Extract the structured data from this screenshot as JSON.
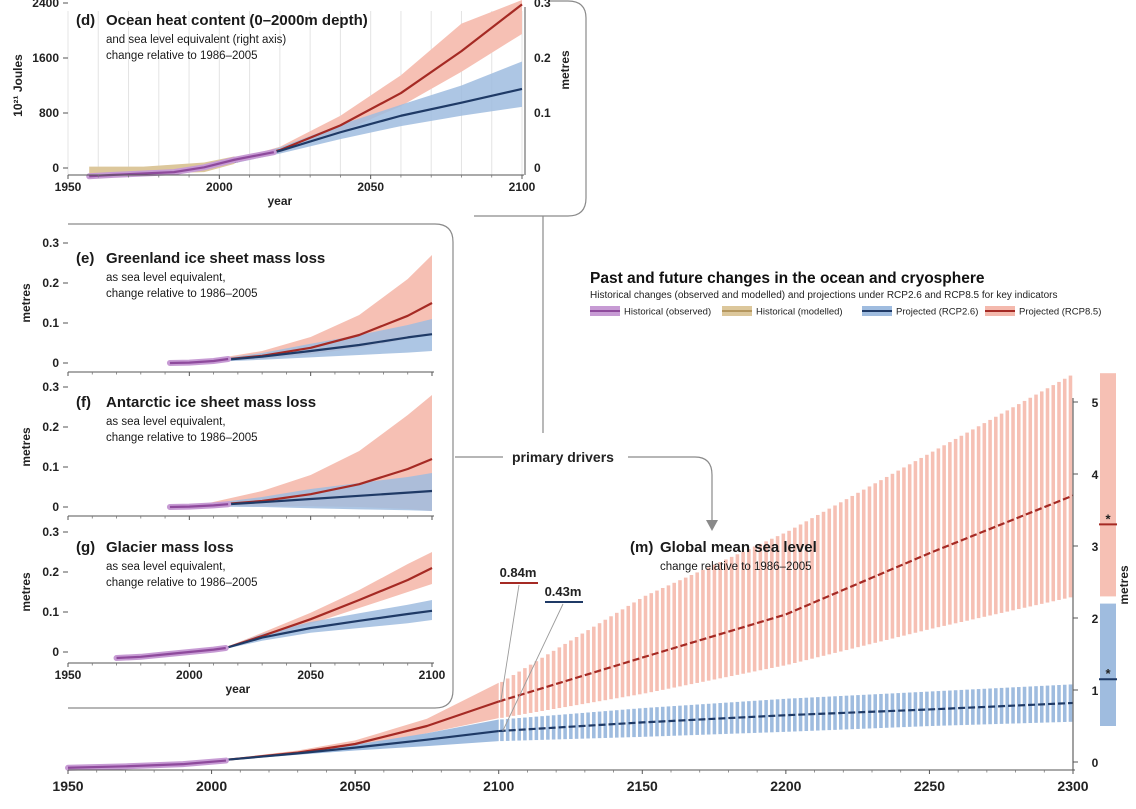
{
  "header": {
    "title": "Past and future changes in the ocean and cryosphere",
    "subtitle": "Historical changes (observed and modelled) and projections under RCP2.6 and RCP8.5 for key indicators"
  },
  "legend": [
    {
      "label": "Historical (observed)",
      "color": "#8e4a9c",
      "band": "#c79bd4"
    },
    {
      "label": "Historical (modelled)",
      "color": "#b5975e",
      "band": "#dcc79b"
    },
    {
      "label": "Projected (RCP2.6)",
      "color": "#1f3a66",
      "band": "#9fbcdf"
    },
    {
      "label": "Projected (RCP8.5)",
      "color": "#a52a24",
      "band": "#f4b9ad"
    }
  ],
  "colors": {
    "rcp26_line": "#1f3a66",
    "rcp26_band": "#9fbcdf",
    "rcp85_line": "#a52a24",
    "rcp85_band": "#f6c0b4",
    "obs_line": "#8e4a9c",
    "obs_band": "#c79bd4",
    "model_band": "#dcc79b",
    "overlap": "#a89aa8"
  },
  "drivers_label": "primary drivers",
  "chart_data": [
    {
      "id": "d",
      "type": "area",
      "panel_letter": "(d)",
      "title": "Ocean heat content (0–2000m depth)",
      "subtitle_lines": [
        "and sea level equivalent (right axis)",
        "change relative to 1986–2005"
      ],
      "xlabel": "year",
      "ylabel": "10²¹ Joules",
      "ylabel_right": "metres",
      "xlim": [
        1950,
        2100
      ],
      "ylim": [
        -200,
        2800
      ],
      "yticks": [
        0,
        800,
        1600,
        2400
      ],
      "yticks_right": [
        {
          "value": 0,
          "label": "0"
        },
        {
          "value": 800,
          "label": "0.1"
        },
        {
          "value": 1600,
          "label": "0.2"
        },
        {
          "value": 2400,
          "label": "0.3"
        }
      ],
      "xticks": [
        1950,
        2000,
        2050,
        2100
      ],
      "grid": true,
      "observed": {
        "x": [
          1957,
          1965,
          1975,
          1985,
          1995,
          2005,
          2018
        ],
        "y": [
          -120,
          -100,
          -80,
          -60,
          10,
          120,
          230
        ]
      },
      "modelled": {
        "x": [
          1957,
          1975,
          1995,
          2005
        ],
        "lower": [
          -200,
          -160,
          -60,
          60
        ],
        "upper": [
          20,
          20,
          80,
          170
        ]
      },
      "rcp85": {
        "x": [
          2005,
          2020,
          2040,
          2060,
          2080,
          2100
        ],
        "y": [
          90,
          260,
          620,
          1090,
          1700,
          2380
        ],
        "lower": [
          70,
          220,
          520,
          900,
          1400,
          1950
        ],
        "upper": [
          120,
          310,
          760,
          1350,
          2100,
          3000
        ]
      },
      "rcp26": {
        "x": [
          2005,
          2020,
          2040,
          2060,
          2080,
          2100
        ],
        "y": [
          90,
          250,
          520,
          760,
          950,
          1150
        ],
        "lower": [
          70,
          210,
          420,
          610,
          760,
          890
        ],
        "upper": [
          120,
          300,
          630,
          920,
          1200,
          1550
        ]
      }
    },
    {
      "id": "e",
      "type": "area",
      "panel_letter": "(e)",
      "title": "Greenland ice sheet mass loss",
      "subtitle_lines": [
        "as sea level equivalent,",
        "change relative to 1986–2005"
      ],
      "xlabel": "",
      "ylabel": "metres",
      "xlim": [
        1950,
        2100
      ],
      "ylim": [
        0,
        0.3
      ],
      "yticks": [
        0,
        0.1,
        0.2,
        0.3
      ],
      "xticks": [
        1950,
        2000,
        2050,
        2100
      ],
      "grid": false,
      "observed": {
        "x": [
          1992,
          2000,
          2010,
          2016
        ],
        "y": [
          0.0,
          0.001,
          0.005,
          0.01
        ]
      },
      "rcp85": {
        "x": [
          2005,
          2030,
          2050,
          2070,
          2090,
          2100
        ],
        "y": [
          0.003,
          0.018,
          0.038,
          0.07,
          0.118,
          0.15
        ],
        "lower": [
          0.002,
          0.01,
          0.022,
          0.038,
          0.06,
          0.075
        ],
        "upper": [
          0.005,
          0.03,
          0.065,
          0.12,
          0.21,
          0.27
        ]
      },
      "rcp26": {
        "x": [
          2005,
          2030,
          2050,
          2070,
          2090,
          2100
        ],
        "y": [
          0.003,
          0.016,
          0.03,
          0.045,
          0.064,
          0.072
        ],
        "lower": [
          0.002,
          0.008,
          0.014,
          0.02,
          0.026,
          0.03
        ],
        "upper": [
          0.005,
          0.025,
          0.048,
          0.07,
          0.095,
          0.11
        ]
      }
    },
    {
      "id": "f",
      "type": "area",
      "panel_letter": "(f)",
      "title": "Antarctic ice sheet mass loss",
      "subtitle_lines": [
        "as sea level equivalent,",
        "change relative to 1986–2005"
      ],
      "xlabel": "",
      "ylabel": "metres",
      "xlim": [
        1950,
        2100
      ],
      "ylim": [
        0,
        0.3
      ],
      "yticks": [
        0,
        0.1,
        0.2,
        0.3
      ],
      "xticks": [
        1950,
        2000,
        2050,
        2100
      ],
      "grid": false,
      "observed": {
        "x": [
          1992,
          2000,
          2010,
          2016
        ],
        "y": [
          0.0,
          0.001,
          0.004,
          0.007
        ]
      },
      "rcp85": {
        "x": [
          2005,
          2030,
          2050,
          2070,
          2090,
          2100
        ],
        "y": [
          0.003,
          0.015,
          0.032,
          0.057,
          0.095,
          0.12
        ],
        "lower": [
          0.001,
          0.002,
          0.002,
          0.0,
          -0.005,
          -0.01
        ],
        "upper": [
          0.006,
          0.04,
          0.08,
          0.14,
          0.23,
          0.28
        ]
      },
      "rcp26": {
        "x": [
          2005,
          2030,
          2050,
          2070,
          2090,
          2100
        ],
        "y": [
          0.003,
          0.012,
          0.02,
          0.028,
          0.036,
          0.04
        ],
        "lower": [
          0.001,
          0.0,
          -0.003,
          -0.006,
          -0.008,
          -0.01
        ],
        "upper": [
          0.006,
          0.025,
          0.045,
          0.06,
          0.075,
          0.085
        ]
      }
    },
    {
      "id": "g",
      "type": "area",
      "panel_letter": "(g)",
      "title": "Glacier mass loss",
      "subtitle_lines": [
        "as sea level equivalent,",
        "change relative to 1986–2005"
      ],
      "xlabel": "year",
      "ylabel": "metres",
      "xlim": [
        1950,
        2100
      ],
      "ylim": [
        0,
        0.3
      ],
      "yticks": [
        0,
        0.1,
        0.2,
        0.3
      ],
      "xticks": [
        1950,
        2000,
        2050,
        2100
      ],
      "grid": false,
      "observed": {
        "x": [
          1970,
          1980,
          1990,
          2000,
          2010,
          2015
        ],
        "y": [
          -0.015,
          -0.012,
          -0.006,
          0.0,
          0.006,
          0.01
        ]
      },
      "rcp85": {
        "x": [
          2015,
          2030,
          2050,
          2070,
          2090,
          2100
        ],
        "y": [
          0.01,
          0.04,
          0.082,
          0.13,
          0.18,
          0.21
        ],
        "lower": [
          0.008,
          0.033,
          0.07,
          0.11,
          0.15,
          0.17
        ],
        "upper": [
          0.012,
          0.048,
          0.098,
          0.155,
          0.22,
          0.25
        ]
      },
      "rcp26": {
        "x": [
          2015,
          2030,
          2050,
          2070,
          2090,
          2100
        ],
        "y": [
          0.01,
          0.036,
          0.06,
          0.078,
          0.095,
          0.103
        ],
        "lower": [
          0.008,
          0.028,
          0.048,
          0.06,
          0.072,
          0.08
        ],
        "upper": [
          0.012,
          0.045,
          0.075,
          0.097,
          0.118,
          0.13
        ]
      }
    },
    {
      "id": "m",
      "type": "area",
      "panel_letter": "(m)",
      "title": "Global mean sea level",
      "subtitle_lines": [
        "change relative to 1986–2005"
      ],
      "xlabel": "",
      "ylabel": "metres",
      "xlim": [
        1950,
        2300
      ],
      "ylim": [
        -0.2,
        5.5
      ],
      "yticks": [
        0,
        1,
        2,
        3,
        4,
        5
      ],
      "xticks": [
        1950,
        2000,
        2050,
        2100,
        2150,
        2200,
        2250,
        2300
      ],
      "grid": false,
      "observed": {
        "x": [
          1950,
          1970,
          1990,
          2005
        ],
        "y": [
          -0.08,
          -0.06,
          -0.03,
          0.02
        ]
      },
      "rcp85": {
        "x": [
          2005,
          2030,
          2050,
          2075,
          2100,
          2150,
          2200,
          2250,
          2300
        ],
        "y": [
          0.03,
          0.13,
          0.25,
          0.5,
          0.84,
          1.45,
          2.05,
          2.9,
          3.7
        ],
        "lower": [
          0.02,
          0.11,
          0.2,
          0.4,
          0.61,
          0.95,
          1.35,
          1.85,
          2.3
        ],
        "upper": [
          0.04,
          0.16,
          0.3,
          0.6,
          1.1,
          2.3,
          3.2,
          4.3,
          5.4
        ]
      },
      "rcp26": {
        "x": [
          2005,
          2030,
          2050,
          2075,
          2100,
          2150,
          2200,
          2250,
          2300
        ],
        "y": [
          0.03,
          0.12,
          0.2,
          0.31,
          0.43,
          0.55,
          0.65,
          0.73,
          0.82
        ],
        "lower": [
          0.02,
          0.1,
          0.16,
          0.22,
          0.29,
          0.35,
          0.42,
          0.5,
          0.56
        ],
        "upper": [
          0.04,
          0.14,
          0.24,
          0.4,
          0.59,
          0.75,
          0.88,
          0.98,
          1.08
        ]
      },
      "annotations": [
        {
          "label": "0.84m",
          "x": 2100,
          "value": 0.84,
          "series": "rcp85"
        },
        {
          "label": "0.43m",
          "x": 2100,
          "value": 0.43,
          "series": "rcp26"
        }
      ],
      "side_bars": {
        "rcp85": {
          "lower": 2.3,
          "upper": 5.4,
          "median": 3.3
        },
        "rcp26": {
          "lower": 0.5,
          "upper": 2.2,
          "median": 1.15
        },
        "marker": "*"
      }
    }
  ]
}
